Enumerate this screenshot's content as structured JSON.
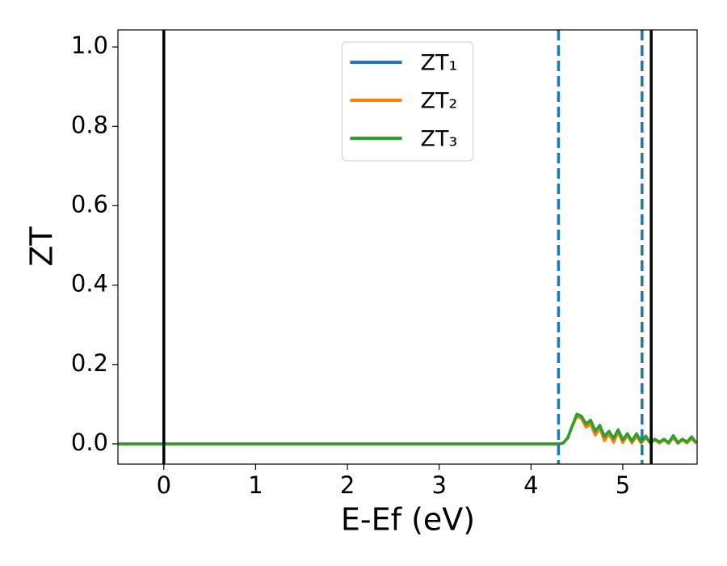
{
  "chart_data": {
    "type": "line",
    "xlabel": "E-Ef (eV)",
    "ylabel": "ZT",
    "x": [
      -0.5,
      4.3,
      4.35,
      4.4,
      4.45,
      4.5,
      4.55,
      4.6,
      4.65,
      4.7,
      4.75,
      4.8,
      4.85,
      4.9,
      4.95,
      5.0,
      5.05,
      5.1,
      5.15,
      5.2,
      5.25,
      5.3,
      5.35,
      5.4,
      5.45,
      5.5,
      5.55,
      5.6,
      5.65,
      5.7,
      5.75,
      5.8
    ],
    "series": [
      {
        "name": "ZT₁",
        "color": "#1f77b4",
        "values": [
          0,
          0,
          0.002,
          0.015,
          0.045,
          0.072,
          0.068,
          0.05,
          0.052,
          0.035,
          0.04,
          0.022,
          0.028,
          0.016,
          0.03,
          0.012,
          0.022,
          0.008,
          0.02,
          0.006,
          0.016,
          0.004,
          0.01,
          0.005,
          0.01,
          0.004,
          0.016,
          0.004,
          0.01,
          0.005,
          0.014,
          0.003
        ]
      },
      {
        "name": "ZT₂",
        "color": "#ff7f0e",
        "values": [
          0,
          0,
          0.002,
          0.014,
          0.044,
          0.07,
          0.064,
          0.042,
          0.05,
          0.022,
          0.04,
          0.008,
          0.026,
          0.004,
          0.03,
          0.003,
          0.022,
          0.002,
          0.02,
          0.002,
          0.016,
          0.002,
          0.01,
          0.002,
          0.01,
          0.001,
          0.016,
          0.001,
          0.01,
          0.002,
          0.014,
          0.001
        ]
      },
      {
        "name": "ZT₃",
        "color": "#2ca02c",
        "values": [
          0,
          0,
          0.002,
          0.015,
          0.046,
          0.075,
          0.07,
          0.05,
          0.06,
          0.032,
          0.047,
          0.018,
          0.032,
          0.014,
          0.036,
          0.01,
          0.026,
          0.007,
          0.026,
          0.005,
          0.02,
          0.003,
          0.012,
          0.005,
          0.012,
          0.003,
          0.021,
          0.003,
          0.012,
          0.005,
          0.018,
          0.003
        ]
      }
    ],
    "vlines": [
      {
        "x": 0,
        "color": "#000000",
        "dashed": false
      },
      {
        "x": 5.31,
        "color": "#000000",
        "dashed": false
      },
      {
        "x": 4.3,
        "color": "#1f77b4",
        "dashed": true
      },
      {
        "x": 5.21,
        "color": "#1f77b4",
        "dashed": true
      }
    ],
    "xlim": [
      -0.5,
      5.81
    ],
    "ylim": [
      -0.051,
      1.043
    ],
    "xticks": [
      0,
      1,
      2,
      3,
      4,
      5
    ],
    "yticks": [
      {
        "value": 0,
        "label": "0.0"
      },
      0.2,
      0.4,
      0.6,
      0.8,
      {
        "value": 1,
        "label": "1.0"
      }
    ],
    "grid": false,
    "legend": "upper center"
  }
}
